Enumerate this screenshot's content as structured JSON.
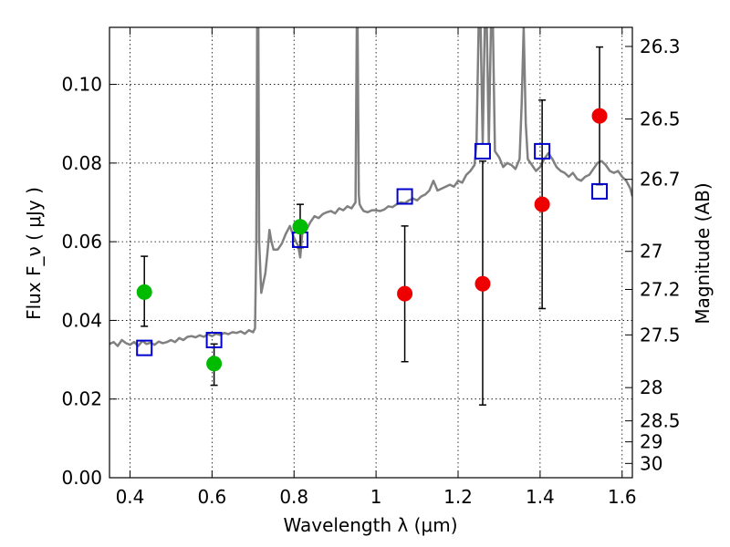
{
  "chart_data": {
    "type": "scatter",
    "title": "",
    "xlabel": "Wavelength  λ (μm)",
    "ylabel": "Flux  F_ν  ( μJy )",
    "ylabel_right": "Magnitude (AB)",
    "xlim": [
      0.35,
      1.625
    ],
    "ylim": [
      0.0,
      0.1145
    ],
    "grid": true,
    "xticks": [
      {
        "value": 0.4,
        "label": "0.4"
      },
      {
        "value": 0.6,
        "label": "0.6"
      },
      {
        "value": 0.8,
        "label": "0.8"
      },
      {
        "value": 1.0,
        "label": "1"
      },
      {
        "value": 1.2,
        "label": "1.2"
      },
      {
        "value": 1.4,
        "label": "1.4"
      },
      {
        "value": 1.6,
        "label": "1.6"
      }
    ],
    "yticks": [
      {
        "value": 0.0,
        "label": "0.00"
      },
      {
        "value": 0.02,
        "label": "0.02"
      },
      {
        "value": 0.04,
        "label": "0.04"
      },
      {
        "value": 0.06,
        "label": "0.06"
      },
      {
        "value": 0.08,
        "label": "0.08"
      },
      {
        "value": 0.1,
        "label": "0.10"
      }
    ],
    "right_ticks": [
      {
        "value": 26.3,
        "label": "26.3"
      },
      {
        "value": 26.5,
        "label": "26.5"
      },
      {
        "value": 26.7,
        "label": "26.7"
      },
      {
        "value": 27.0,
        "label": "27"
      },
      {
        "value": 27.2,
        "label": "27.2"
      },
      {
        "value": 27.5,
        "label": "27.5"
      },
      {
        "value": 28.0,
        "label": "28"
      },
      {
        "value": 28.5,
        "label": "28.5"
      },
      {
        "value": 29.0,
        "label": "29"
      },
      {
        "value": 30.0,
        "label": "30"
      }
    ],
    "series": [
      {
        "name": "model spectrum",
        "kind": "line",
        "color": "#808080",
        "x": [
          0.35,
          0.36,
          0.37,
          0.38,
          0.39,
          0.4,
          0.41,
          0.42,
          0.43,
          0.44,
          0.45,
          0.46,
          0.47,
          0.48,
          0.49,
          0.5,
          0.51,
          0.52,
          0.53,
          0.54,
          0.55,
          0.56,
          0.57,
          0.58,
          0.59,
          0.6,
          0.61,
          0.62,
          0.63,
          0.64,
          0.65,
          0.66,
          0.67,
          0.68,
          0.69,
          0.7,
          0.705,
          0.708,
          0.71,
          0.713,
          0.715,
          0.72,
          0.73,
          0.735,
          0.74,
          0.745,
          0.75,
          0.76,
          0.77,
          0.78,
          0.79,
          0.8,
          0.81,
          0.815,
          0.82,
          0.83,
          0.84,
          0.85,
          0.86,
          0.87,
          0.88,
          0.89,
          0.9,
          0.91,
          0.92,
          0.93,
          0.94,
          0.95,
          0.953,
          0.955,
          0.958,
          0.96,
          0.965,
          0.97,
          0.98,
          0.99,
          1.0,
          1.01,
          1.02,
          1.03,
          1.04,
          1.05,
          1.06,
          1.07,
          1.08,
          1.09,
          1.1,
          1.11,
          1.12,
          1.13,
          1.14,
          1.15,
          1.16,
          1.17,
          1.18,
          1.19,
          1.2,
          1.21,
          1.22,
          1.23,
          1.24,
          1.245,
          1.25,
          1.255,
          1.26,
          1.265,
          1.27,
          1.275,
          1.28,
          1.285,
          1.29,
          1.3,
          1.31,
          1.32,
          1.33,
          1.34,
          1.35,
          1.355,
          1.36,
          1.365,
          1.37,
          1.38,
          1.39,
          1.4,
          1.41,
          1.42,
          1.43,
          1.44,
          1.45,
          1.46,
          1.47,
          1.48,
          1.49,
          1.5,
          1.51,
          1.52,
          1.53,
          1.54,
          1.55,
          1.56,
          1.57,
          1.58,
          1.59,
          1.6,
          1.61,
          1.62,
          1.625
        ],
        "y": [
          0.034,
          0.0345,
          0.0335,
          0.035,
          0.0342,
          0.0338,
          0.0345,
          0.0335,
          0.0348,
          0.034,
          0.0343,
          0.0338,
          0.0346,
          0.0342,
          0.0345,
          0.035,
          0.0345,
          0.0355,
          0.035,
          0.0358,
          0.036,
          0.0357,
          0.0362,
          0.0358,
          0.0365,
          0.036,
          0.0366,
          0.0363,
          0.0368,
          0.0365,
          0.037,
          0.0368,
          0.0372,
          0.0366,
          0.0375,
          0.037,
          0.038,
          0.06,
          0.1145,
          0.1145,
          0.06,
          0.047,
          0.052,
          0.057,
          0.063,
          0.06,
          0.058,
          0.058,
          0.0595,
          0.062,
          0.064,
          0.061,
          0.059,
          0.056,
          0.062,
          0.063,
          0.065,
          0.0665,
          0.066,
          0.067,
          0.0675,
          0.0678,
          0.0672,
          0.0685,
          0.068,
          0.069,
          0.0685,
          0.07,
          0.1145,
          0.1145,
          0.072,
          0.0695,
          0.0685,
          0.0678,
          0.0675,
          0.068,
          0.068,
          0.0678,
          0.0682,
          0.069,
          0.0688,
          0.0695,
          0.07,
          0.0698,
          0.0705,
          0.071,
          0.0705,
          0.0715,
          0.072,
          0.073,
          0.0755,
          0.073,
          0.0735,
          0.074,
          0.0745,
          0.074,
          0.0755,
          0.075,
          0.077,
          0.078,
          0.0795,
          0.085,
          0.1145,
          0.1145,
          0.085,
          0.1145,
          0.1145,
          0.085,
          0.1145,
          0.1145,
          0.083,
          0.0815,
          0.079,
          0.08,
          0.0795,
          0.0785,
          0.081,
          0.095,
          0.1145,
          0.09,
          0.081,
          0.0795,
          0.078,
          0.079,
          0.081,
          0.0825,
          0.081,
          0.079,
          0.078,
          0.0775,
          0.0765,
          0.0775,
          0.076,
          0.0755,
          0.0765,
          0.077,
          0.0785,
          0.08,
          0.0805,
          0.0795,
          0.078,
          0.0775,
          0.078,
          0.0765,
          0.0755,
          0.0735,
          0.0715
        ]
      },
      {
        "name": "open squares",
        "kind": "markers",
        "marker": "square-open",
        "color": "#0000cc",
        "points": [
          {
            "x": 0.435,
            "y": 0.033
          },
          {
            "x": 0.605,
            "y": 0.035
          },
          {
            "x": 0.815,
            "y": 0.0605
          },
          {
            "x": 1.07,
            "y": 0.0715
          },
          {
            "x": 1.26,
            "y": 0.083
          },
          {
            "x": 1.405,
            "y": 0.083
          },
          {
            "x": 1.545,
            "y": 0.0728
          }
        ]
      },
      {
        "name": "green points",
        "kind": "markers",
        "marker": "circle",
        "color": "#00bb00",
        "points": [
          {
            "x": 0.435,
            "y": 0.0472,
            "ylo": 0.0385,
            "yhi": 0.0563
          },
          {
            "x": 0.605,
            "y": 0.029,
            "ylo": 0.0235,
            "yhi": 0.034
          },
          {
            "x": 0.815,
            "y": 0.0638,
            "ylo": 0.0585,
            "yhi": 0.0695
          }
        ]
      },
      {
        "name": "red points",
        "kind": "markers",
        "marker": "circle",
        "color": "#ee0000",
        "points": [
          {
            "x": 1.07,
            "y": 0.0468,
            "ylo": 0.0295,
            "yhi": 0.064
          },
          {
            "x": 1.26,
            "y": 0.0493,
            "ylo": 0.0185,
            "yhi": 0.0805
          },
          {
            "x": 1.405,
            "y": 0.0695,
            "ylo": 0.043,
            "yhi": 0.096
          },
          {
            "x": 1.545,
            "y": 0.092,
            "ylo": 0.0745,
            "yhi": 0.1095
          }
        ]
      }
    ]
  }
}
